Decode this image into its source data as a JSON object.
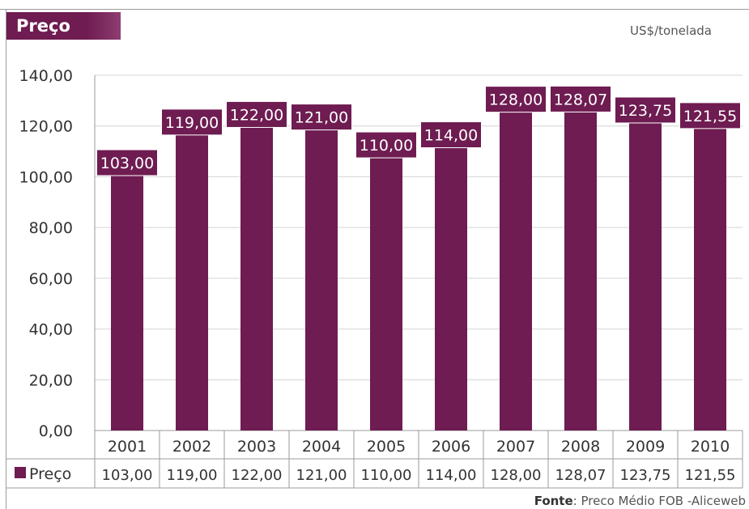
{
  "header": {
    "title": "Preço",
    "unit": "US$/tonelada"
  },
  "source": {
    "label": "Fonte",
    "text": ": Preco Médio FOB -Aliceweb"
  },
  "colors": {
    "bar": "#6e1c51",
    "label_bg": "#6e1c51",
    "label_text": "#ffffff",
    "grid": "#d4d4d4"
  },
  "chart_data": {
    "type": "bar",
    "title": "Preço",
    "ylabel": "",
    "xlabel": "",
    "unit": "US$/tonelada",
    "categories": [
      "2001",
      "2002",
      "2003",
      "2004",
      "2005",
      "2006",
      "2007",
      "2008",
      "2009",
      "2010"
    ],
    "series": [
      {
        "name": "Preço",
        "values": [
          103.0,
          119.0,
          122.0,
          121.0,
          110.0,
          114.0,
          128.0,
          128.07,
          123.75,
          121.55
        ],
        "labels": [
          "103,00",
          "119,00",
          "122,00",
          "121,00",
          "110,00",
          "114,00",
          "128,00",
          "128,07",
          "123,75",
          "121,55"
        ]
      }
    ],
    "ylim": [
      0,
      140
    ],
    "yticks": [
      "0,00",
      "20,00",
      "40,00",
      "60,00",
      "80,00",
      "100,00",
      "120,00",
      "140,00"
    ],
    "grid": true,
    "legend": "data-table-left"
  }
}
